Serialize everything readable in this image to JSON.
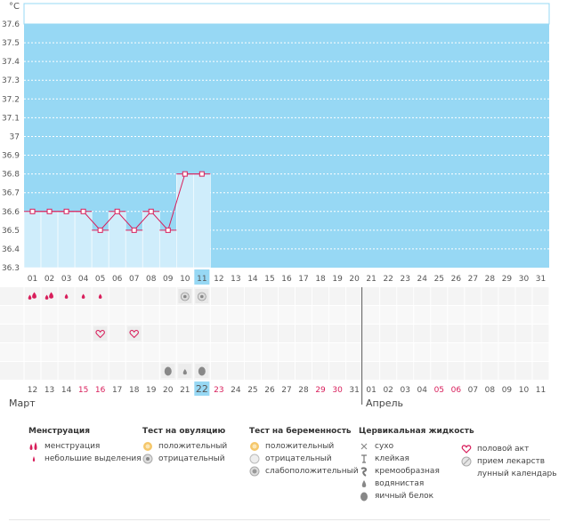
{
  "chart_data": {
    "type": "line",
    "unit_label": "°C",
    "ylim": [
      36.3,
      37.6
    ],
    "y_ticks": [
      "37.6",
      "37.5",
      "37.4",
      "37.3",
      "37.2",
      "37.1",
      "37",
      "36.9",
      "36.8",
      "36.7",
      "36.6",
      "36.5",
      "36.4",
      "36.3"
    ],
    "cycle_days": [
      "01",
      "02",
      "03",
      "04",
      "05",
      "06",
      "07",
      "08",
      "09",
      "10",
      "11",
      "12",
      "13",
      "14",
      "15",
      "16",
      "17",
      "18",
      "19",
      "20",
      "21",
      "22",
      "23",
      "24",
      "25",
      "26",
      "27",
      "28",
      "29",
      "30",
      "31"
    ],
    "series": [
      {
        "x": [
          "01",
          "02",
          "03",
          "04",
          "05",
          "06",
          "07",
          "08",
          "09",
          "10",
          "11"
        ],
        "values": [
          36.6,
          36.6,
          36.6,
          36.6,
          36.5,
          36.6,
          36.5,
          36.6,
          36.5,
          36.8,
          36.8
        ]
      }
    ],
    "highlight_day": "11",
    "calendar_days": [
      "12",
      "13",
      "14",
      "15",
      "16",
      "17",
      "18",
      "19",
      "20",
      "21",
      "22",
      "23",
      "24",
      "25",
      "26",
      "27",
      "28",
      "29",
      "30",
      "31",
      "01",
      "02",
      "03",
      "04",
      "05",
      "06",
      "07",
      "08",
      "09",
      "10",
      "11"
    ],
    "red_calendar_days": [
      "15",
      "16",
      "23",
      "29",
      "30",
      "05",
      "06"
    ],
    "today": "22",
    "months": [
      "Март",
      "Апрель"
    ],
    "marks": {
      "menstruation": [
        "01",
        "02"
      ],
      "light_discharge": [
        "03",
        "04",
        "05"
      ],
      "ovulation_negative": [
        "10",
        "11"
      ],
      "intercourse": [
        "05",
        "07"
      ],
      "egg_white": [
        "09",
        "11"
      ],
      "watery": [
        "10"
      ]
    }
  },
  "colors": {
    "plot_bg": "#97d8f4",
    "bar_fill": "#cfedfb",
    "line": "#d81e5b",
    "highlight": "#97d8f4",
    "red_text": "#d81e5b"
  },
  "legend": {
    "menstruation": {
      "title": "Менструация",
      "items": [
        {
          "icon": "drop-pair-icon",
          "label": "менструация"
        },
        {
          "icon": "small-drop-icon",
          "label": "небольшие выделения"
        }
      ]
    },
    "ovulation_test": {
      "title": "Тест на овуляцию",
      "items": [
        {
          "icon": "positive-circle-icon",
          "label": "положительный"
        },
        {
          "icon": "negative-circle-icon",
          "label": "отрицательный"
        }
      ]
    },
    "pregnancy_test": {
      "title": "Тест на беременность",
      "items": [
        {
          "icon": "positive-circle-icon",
          "label": "положительный"
        },
        {
          "icon": "negative-circle-icon",
          "label": "отрицательный"
        },
        {
          "icon": "weak-positive-icon",
          "label": "слабоположительный"
        }
      ]
    },
    "cervical_fluid": {
      "title": "Цервикальная жидкость",
      "items": [
        {
          "icon": "dry-icon",
          "label": "сухо"
        },
        {
          "icon": "sticky-icon",
          "label": "клейкая"
        },
        {
          "icon": "creamy-icon",
          "label": "кремообразная"
        },
        {
          "icon": "watery-icon",
          "label": "водянистая"
        },
        {
          "icon": "egg-white-icon",
          "label": "яичный белок"
        }
      ]
    },
    "other": {
      "items": [
        {
          "icon": "heart-icon",
          "label": "половой акт"
        },
        {
          "icon": "pill-icon",
          "label": "прием лекарств"
        },
        {
          "icon": "moon-icon",
          "label": "лунный календарь"
        }
      ]
    }
  }
}
